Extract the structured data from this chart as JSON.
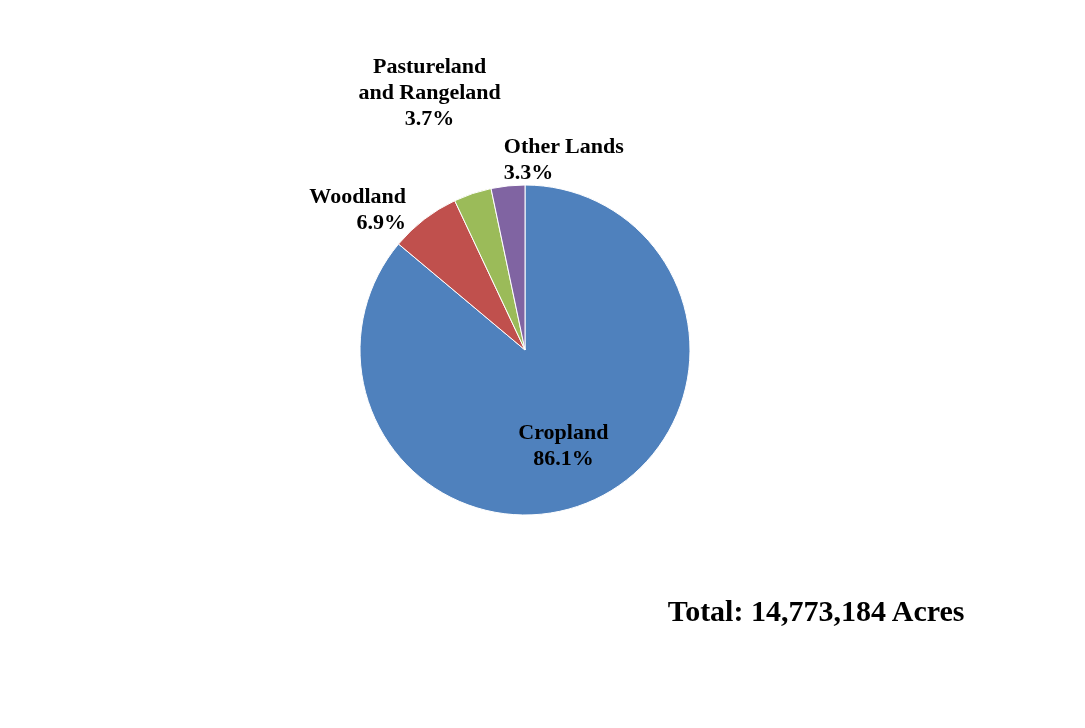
{
  "chart_data": {
    "type": "pie",
    "categories": [
      "Cropland",
      "Woodland",
      "Pastureland and Rangeland",
      "Other Lands"
    ],
    "values": [
      86.1,
      6.9,
      3.7,
      3.3
    ],
    "colors": [
      "#4f81bd",
      "#c0504d",
      "#9bbb59",
      "#8064a2"
    ],
    "value_labels": [
      "86.1%",
      "6.9%",
      "3.7%",
      "3.3%"
    ],
    "annotations": [
      "Total: 14,773,184 Acres"
    ],
    "legend": false
  }
}
